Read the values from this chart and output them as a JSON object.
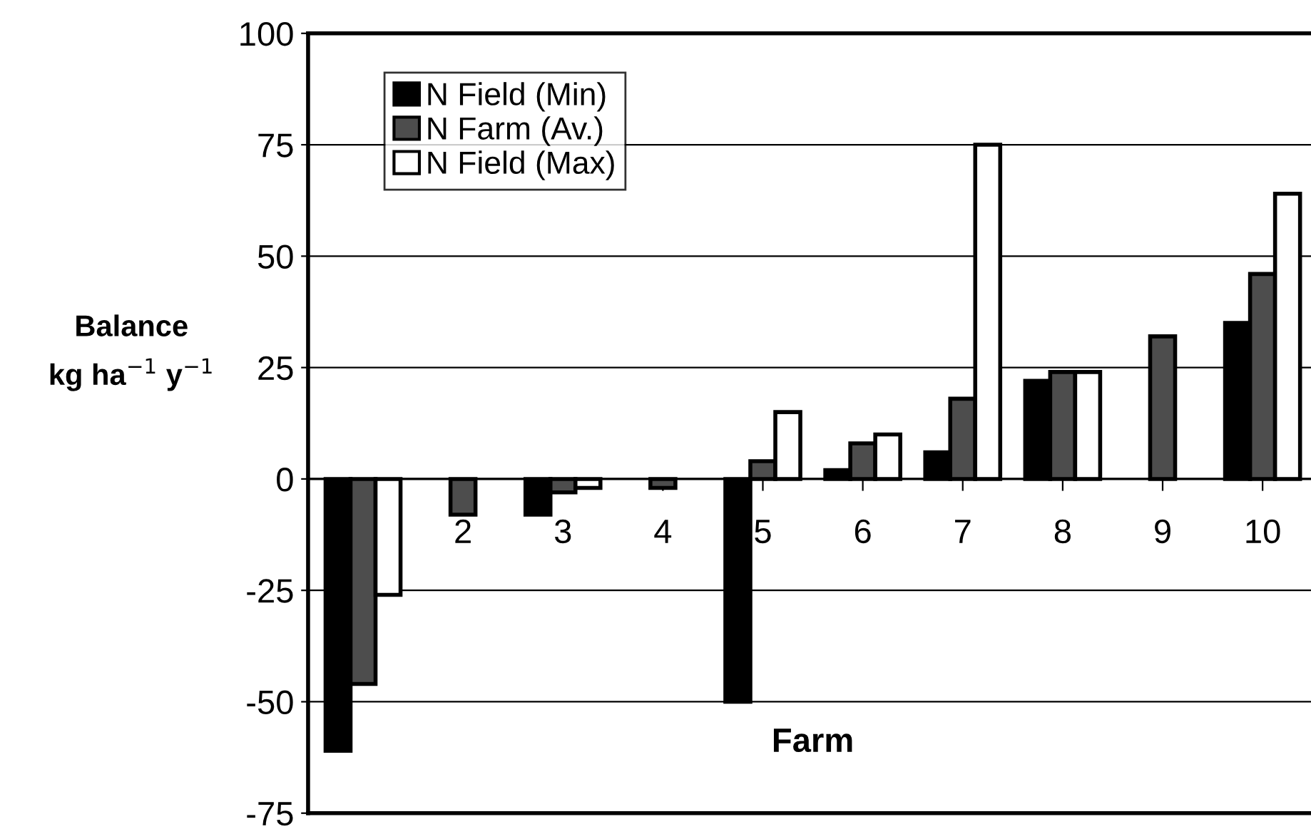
{
  "chart_data": {
    "type": "bar",
    "categories": [
      null,
      "2",
      "3",
      "4",
      "5",
      "6",
      "7",
      "8",
      "9",
      "10"
    ],
    "series": [
      {
        "name": "N Field (Min)",
        "color": "#000000",
        "values": [
          -61,
          null,
          -8,
          null,
          -50,
          2,
          6,
          22,
          null,
          35
        ]
      },
      {
        "name": "N Farm (Av.)",
        "color": "#4d4d4d",
        "values": [
          -46,
          -8,
          -3,
          -2,
          4,
          8,
          18,
          24,
          32,
          46
        ]
      },
      {
        "name": "N Field (Max)",
        "color": "#ffffff",
        "values": [
          -26,
          null,
          -2,
          null,
          15,
          10,
          75,
          24,
          null,
          64
        ]
      }
    ],
    "xlabel": "Farm",
    "ylabel": "Balance\nkg ha$^{−1}$ y$^{−1}$",
    "ylim": [
      -75,
      100
    ],
    "yticks": [
      -75,
      -50,
      -25,
      0,
      25,
      50,
      75,
      100
    ],
    "grid": "y",
    "legend": "top left"
  }
}
